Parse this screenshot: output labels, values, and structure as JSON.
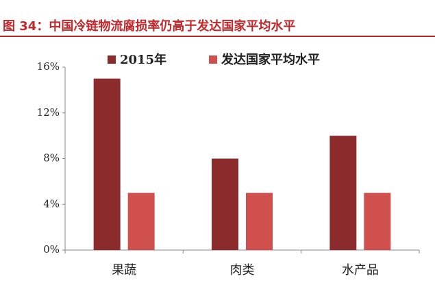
{
  "chart_data": {
    "type": "bar",
    "title": "图 34：中国冷链物流腐损率仍高于发达国家平均水平",
    "categories": [
      "果蔬",
      "肉类",
      "水产品"
    ],
    "series": [
      {
        "name": "2015年",
        "color": "#8b2b2b",
        "values": [
          15,
          8,
          10
        ]
      },
      {
        "name": "发达国家平均水平",
        "color": "#d0504e",
        "values": [
          5,
          5,
          5
        ]
      }
    ],
    "ylim": [
      0,
      16
    ],
    "yticks": [
      {
        "value": 0,
        "label": "0%"
      },
      {
        "value": 4,
        "label": "4%"
      },
      {
        "value": 8,
        "label": "8%"
      },
      {
        "value": 12,
        "label": "12%"
      },
      {
        "value": 16,
        "label": "16%"
      }
    ],
    "grid": false,
    "legend": "top"
  }
}
